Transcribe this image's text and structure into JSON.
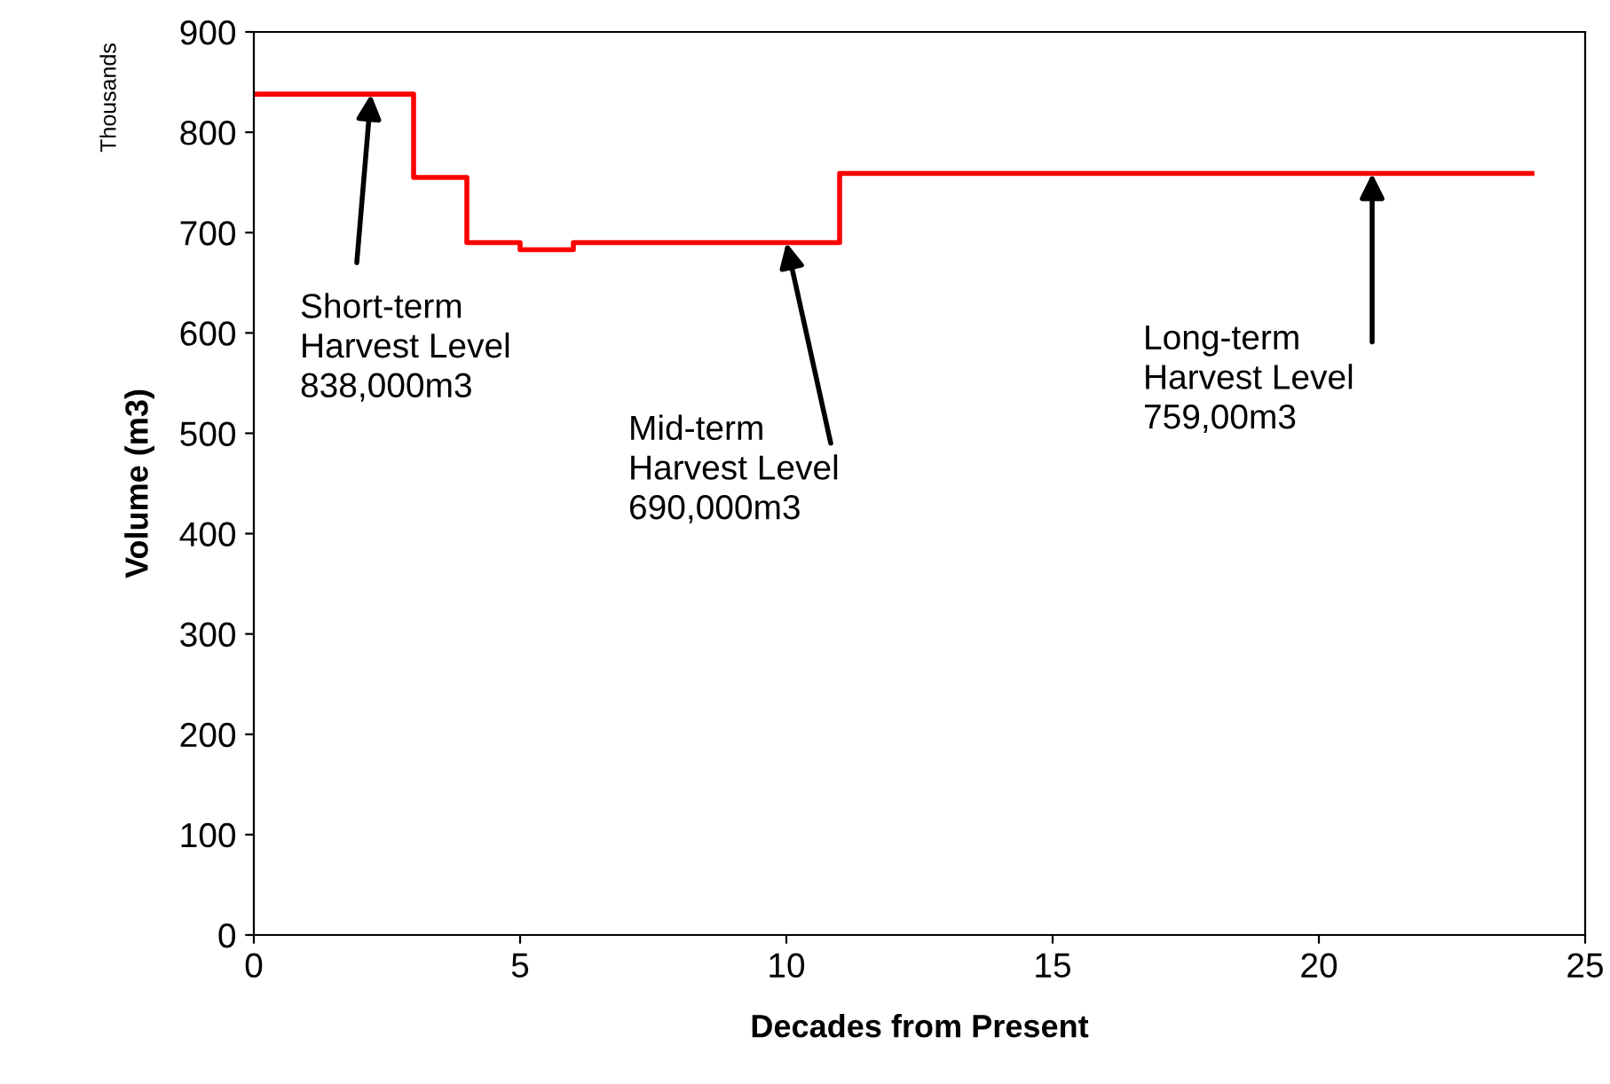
{
  "chart_data": {
    "type": "step",
    "xlabel": "Decades from Present",
    "ylabel": "Volume (m3)",
    "x": [
      0,
      3,
      4,
      5,
      6,
      11,
      24
    ],
    "series": [
      {
        "color": "#ff0000",
        "values": [
          838,
          755,
          690,
          683,
          690,
          759,
          759
        ]
      }
    ],
    "xlim": [
      0,
      25
    ],
    "xticks": [
      0,
      5,
      10,
      15,
      20,
      25
    ],
    "ylim": [
      0,
      900
    ],
    "yticks": [
      0,
      100,
      200,
      300,
      400,
      500,
      600,
      700,
      800,
      900
    ],
    "grid": false,
    "legend": false,
    "annotations": [
      "Thousands",
      {
        "text": "Short-term\nHarvest Level\n838,000m3",
        "x": 2.2,
        "y": 838
      },
      {
        "text": "Mid-term\nHarvest Level\n690,000m3",
        "x": 10,
        "y": 690
      },
      {
        "text": "Long-term\nHarvest Level\n759,00m3",
        "x": 21,
        "y": 759
      }
    ]
  }
}
